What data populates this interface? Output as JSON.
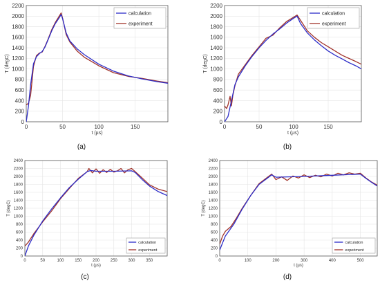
{
  "chart_data": [
    {
      "type": "line",
      "panel_label": "(a)",
      "xlabel": "t (µs)",
      "ylabel": "T (degC)",
      "xlim": [
        0,
        195
      ],
      "ylim": [
        0,
        2200
      ],
      "xticks": [
        0,
        50,
        100,
        150
      ],
      "yticks": [
        0,
        200,
        400,
        600,
        800,
        1000,
        1200,
        1400,
        1600,
        1800,
        2000,
        2200
      ],
      "grid": true,
      "legend": "top-right",
      "series": [
        {
          "name": "calculation",
          "color": "#2d2dc8",
          "x": [
            0,
            3,
            6,
            10,
            14,
            18,
            22,
            26,
            30,
            35,
            40,
            45,
            48,
            50,
            55,
            60,
            70,
            80,
            100,
            120,
            140,
            160,
            180,
            195
          ],
          "y": [
            0,
            300,
            700,
            1100,
            1230,
            1290,
            1330,
            1420,
            1550,
            1720,
            1860,
            1960,
            2030,
            1950,
            1680,
            1530,
            1380,
            1270,
            1090,
            960,
            870,
            810,
            760,
            730
          ]
        },
        {
          "name": "experiment",
          "color": "#a0322a",
          "x": [
            0,
            3,
            6,
            10,
            14,
            18,
            22,
            26,
            30,
            35,
            40,
            45,
            48,
            50,
            55,
            60,
            70,
            80,
            100,
            120,
            140,
            160,
            180,
            195
          ],
          "y": [
            320,
            350,
            500,
            1050,
            1250,
            1300,
            1320,
            1430,
            1560,
            1740,
            1880,
            1990,
            2060,
            1960,
            1650,
            1510,
            1340,
            1220,
            1060,
            930,
            860,
            820,
            770,
            740
          ]
        }
      ]
    },
    {
      "type": "line",
      "panel_label": "(b)",
      "xlabel": "t (µs)",
      "ylabel": "T (degC)",
      "xlim": [
        0,
        198
      ],
      "ylim": [
        0,
        2200
      ],
      "xticks": [
        0,
        50,
        100,
        150
      ],
      "yticks": [
        0,
        200,
        400,
        600,
        800,
        1000,
        1200,
        1400,
        1600,
        1800,
        2000,
        2200
      ],
      "grid": true,
      "legend": "top-right",
      "series": [
        {
          "name": "calculation",
          "color": "#2d2dc8",
          "x": [
            0,
            5,
            10,
            15,
            20,
            30,
            40,
            50,
            60,
            70,
            80,
            90,
            100,
            105,
            110,
            120,
            130,
            140,
            150,
            160,
            170,
            180,
            190,
            198
          ],
          "y": [
            0,
            100,
            400,
            700,
            850,
            1060,
            1240,
            1400,
            1540,
            1660,
            1760,
            1870,
            1960,
            2000,
            1860,
            1680,
            1550,
            1440,
            1340,
            1260,
            1190,
            1120,
            1060,
            1000
          ]
        },
        {
          "name": "experiment",
          "color": "#a0322a",
          "x": [
            0,
            3,
            5,
            8,
            10,
            12,
            15,
            20,
            30,
            40,
            50,
            60,
            70,
            80,
            90,
            100,
            105,
            110,
            120,
            130,
            140,
            150,
            160,
            170,
            180,
            190,
            198
          ],
          "y": [
            300,
            250,
            320,
            480,
            300,
            500,
            680,
            900,
            1080,
            1260,
            1420,
            1580,
            1640,
            1780,
            1900,
            1980,
            2020,
            1920,
            1720,
            1600,
            1500,
            1420,
            1340,
            1260,
            1200,
            1140,
            1090
          ]
        }
      ]
    },
    {
      "type": "line",
      "panel_label": "(c)",
      "xlabel": "t (µs)",
      "ylabel": "T (degC)",
      "xlim": [
        0,
        400
      ],
      "ylim": [
        0,
        2400
      ],
      "xticks": [
        0,
        50,
        100,
        150,
        200,
        250,
        300,
        350
      ],
      "yticks": [
        0,
        200,
        400,
        600,
        800,
        1000,
        1200,
        1400,
        1600,
        1800,
        2000,
        2200,
        2400
      ],
      "grid": true,
      "legend": "bottom-right",
      "series": [
        {
          "name": "calculation",
          "color": "#2d2dc8",
          "x": [
            0,
            10,
            25,
            50,
            75,
            100,
            125,
            150,
            175,
            185,
            200,
            250,
            300,
            310,
            330,
            350,
            375,
            400
          ],
          "y": [
            0,
            250,
            520,
            880,
            1180,
            1460,
            1720,
            1930,
            2120,
            2150,
            2130,
            2130,
            2140,
            2100,
            1920,
            1760,
            1620,
            1520
          ]
        },
        {
          "name": "experiment",
          "color": "#a0322a",
          "x": [
            0,
            10,
            25,
            50,
            75,
            100,
            125,
            150,
            175,
            180,
            190,
            200,
            210,
            220,
            230,
            240,
            250,
            260,
            270,
            280,
            290,
            300,
            310,
            330,
            350,
            375,
            400
          ],
          "y": [
            250,
            350,
            560,
            860,
            1130,
            1440,
            1700,
            1950,
            2120,
            2200,
            2090,
            2190,
            2080,
            2170,
            2100,
            2180,
            2110,
            2140,
            2200,
            2090,
            2170,
            2200,
            2120,
            1960,
            1790,
            1680,
            1620
          ]
        }
      ]
    },
    {
      "type": "line",
      "panel_label": "(d)",
      "xlabel": "t (µs)",
      "ylabel": "T (degC)",
      "xlim": [
        0,
        560
      ],
      "ylim": [
        0,
        2400
      ],
      "xticks": [
        0,
        100,
        200,
        300,
        400,
        500
      ],
      "yticks": [
        0,
        200,
        400,
        600,
        800,
        1000,
        1200,
        1400,
        1600,
        1800,
        2000,
        2200,
        2400
      ],
      "grid": true,
      "legend": "bottom-right",
      "series": [
        {
          "name": "calculation",
          "color": "#2d2dc8",
          "x": [
            0,
            20,
            50,
            80,
            110,
            140,
            170,
            185,
            200,
            300,
            400,
            500,
            520,
            540,
            560
          ],
          "y": [
            150,
            500,
            800,
            1180,
            1520,
            1800,
            1960,
            2040,
            1980,
            2000,
            2030,
            2060,
            1950,
            1850,
            1760
          ]
        },
        {
          "name": "experiment",
          "color": "#a0322a",
          "x": [
            0,
            10,
            20,
            40,
            60,
            80,
            110,
            140,
            170,
            185,
            200,
            220,
            240,
            260,
            280,
            300,
            320,
            340,
            360,
            380,
            400,
            420,
            440,
            460,
            480,
            500,
            520,
            540,
            560
          ],
          "y": [
            300,
            500,
            620,
            740,
            960,
            1200,
            1520,
            1820,
            1980,
            2060,
            1920,
            1990,
            1900,
            2010,
            1960,
            2040,
            1970,
            2030,
            1990,
            2060,
            2010,
            2080,
            2040,
            2090,
            2060,
            2080,
            1960,
            1860,
            1780
          ]
        }
      ]
    }
  ]
}
